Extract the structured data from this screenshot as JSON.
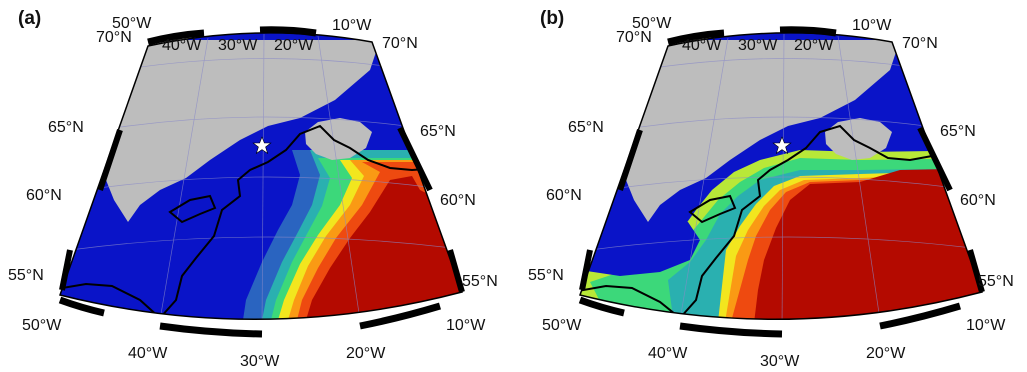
{
  "figure": {
    "description_text_only": "",
    "panels": [
      {
        "id": "a",
        "label": "(a)",
        "top_ticks": [
          "50°W",
          "40°W",
          "30°W",
          "20°W",
          "10°W"
        ],
        "bottom_ticks": [
          "50°W",
          "40°W",
          "30°W",
          "20°W",
          "10°W"
        ],
        "left_ticks": [
          "70°N",
          "65°N",
          "60°N",
          "55°N"
        ],
        "right_ticks": [
          "70°N",
          "65°N",
          "60°N",
          "55°N"
        ],
        "marker": "star-icon"
      },
      {
        "id": "b",
        "label": "(b)",
        "top_ticks": [
          "50°W",
          "40°W",
          "30°W",
          "20°W",
          "10°W"
        ],
        "bottom_ticks": [
          "50°W",
          "40°W",
          "30°W",
          "20°W",
          "10°W"
        ],
        "left_ticks": [
          "70°N",
          "65°N",
          "60°N",
          "55°N"
        ],
        "right_ticks": [
          "70°N",
          "65°N",
          "60°N",
          "55°N"
        ],
        "marker": "star-icon"
      }
    ],
    "colors": {
      "land": "#bdbdbd",
      "deep_blue": "#0a14c8",
      "mid_blue": "#2a64c0",
      "teal": "#2ab0b0",
      "green": "#3cd87a",
      "yellow_green": "#b8e838",
      "yellow": "#f2e61e",
      "orange": "#fa9a14",
      "red_orange": "#ee4a10",
      "dark_red": "#b40a00",
      "frame_black": "#000000",
      "frame_white": "#ffffff"
    }
  }
}
